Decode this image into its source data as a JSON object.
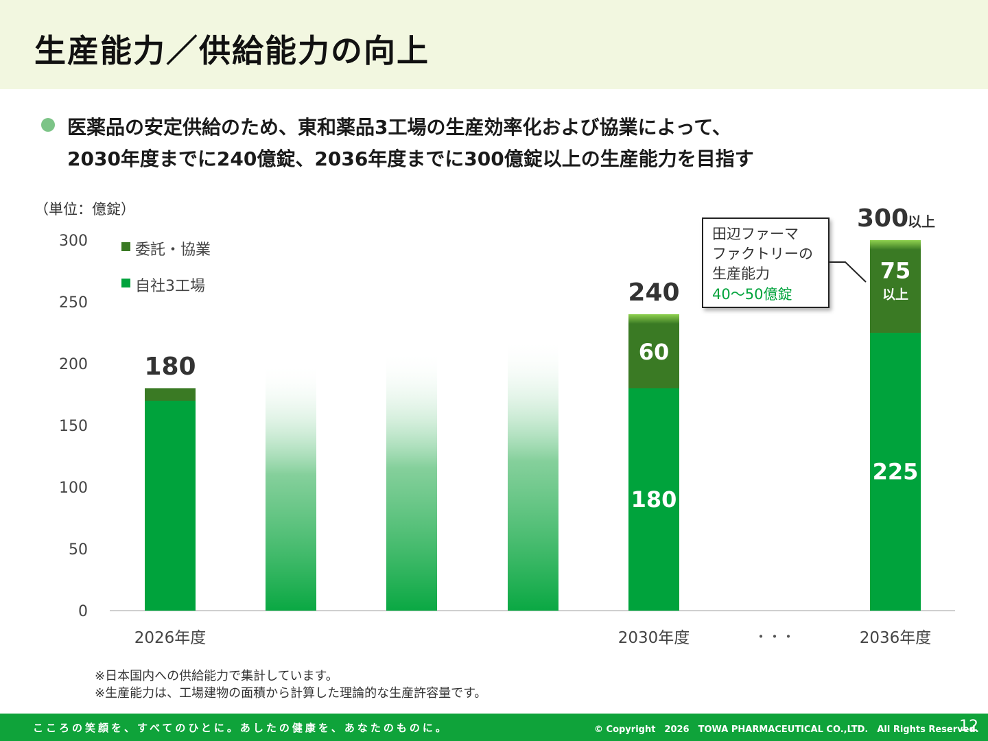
{
  "header": {
    "title": "生産能力／供給能力の向上"
  },
  "lead": {
    "line1": "医薬品の安定供給のため、東和薬品3工場の生産効率化および協業によって、",
    "line2": "2030年度までに240億錠、2036年度までに300億錠以上の生産能力を目指す"
  },
  "chart_data": {
    "type": "bar",
    "stacked": true,
    "unit_label": "（単位：億錠）",
    "ylim": [
      0,
      300
    ],
    "yticks": [
      0,
      50,
      100,
      150,
      200,
      250,
      300
    ],
    "categories": [
      "2026年度",
      "",
      "",
      "",
      "2030年度",
      "2036年度"
    ],
    "ellipsis_label": "・・・",
    "series": [
      {
        "name": "自社3工場",
        "color": "#00a33c",
        "values": [
          170,
          null,
          null,
          null,
          180,
          225
        ],
        "value_labels": [
          "",
          "",
          "",
          "",
          "180",
          "225"
        ]
      },
      {
        "name": "委託・協業",
        "color": "#3a7a24",
        "values": [
          10,
          null,
          null,
          null,
          60,
          75
        ],
        "value_labels": [
          "",
          "",
          "",
          "",
          "60",
          "75"
        ]
      }
    ],
    "transition_bars": [
      200,
      210,
      220
    ],
    "totals": [
      "180",
      "",
      "",
      "",
      "240",
      "300"
    ],
    "total_suffix_last": "以上",
    "value_suffix_last": "以上",
    "legend_position": "top-left",
    "callout": {
      "line1": "田辺ファーマ",
      "line2": "ファクトリーの",
      "line3": "生産能力",
      "highlight": "40～50億錠",
      "highlight_color": "#00a33c"
    }
  },
  "footnotes": [
    "※日本国内への供給能力で集計しています。",
    "※生産能力は、工場建物の面積から計算した理論的な生産許容量です。"
  ],
  "footer": {
    "slogan": "こころの笑顔を、すべてのひとに。あしたの健康を、あなたのものに。",
    "copyright": "© Copyright　2026　TOWA PHARMACEUTICAL CO.,LTD.　All Rights Reserved.",
    "page_number": "12"
  }
}
